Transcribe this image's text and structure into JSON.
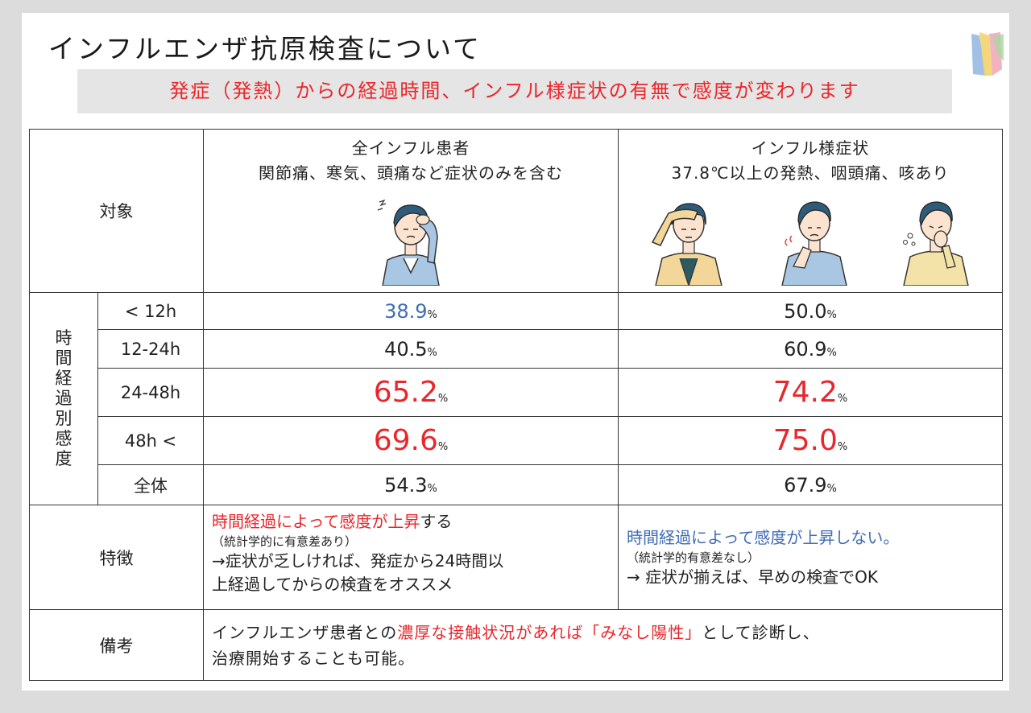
{
  "title": "インフルエンザ抗原検査について",
  "subtitle": "発症（発熱）からの経過時間、インフル様症状の有無で感度が変わります",
  "header": {
    "target_label": "対象",
    "col1_title": "全インフル患者",
    "col1_sub": "関節痛、寒気、頭痛など症状のみを含む",
    "col2_title": "インフル様症状",
    "col2_sub": "37.8℃以上の発熱、咽頭痛、咳あり"
  },
  "vertical_label": [
    "時",
    "間",
    "経",
    "過",
    "別",
    "感",
    "度"
  ],
  "rows": [
    {
      "time": "< 12h",
      "v1": "38.9",
      "v2": "50.0"
    },
    {
      "time": "12-24h",
      "v1": "40.5",
      "v2": "60.9"
    },
    {
      "time": "24-48h",
      "v1": "65.2",
      "v2": "74.2"
    },
    {
      "time": "48h <",
      "v1": "69.6",
      "v2": "75.0"
    },
    {
      "time": "全体",
      "v1": "54.3",
      "v2": "67.9"
    }
  ],
  "pct_unit": "%",
  "features": {
    "label": "特徴",
    "left_red": "時間経過によって感度が上昇",
    "left_tail": "する",
    "left_small": "（統計学的に有意差あり）",
    "left_line3": "→症状が乏しければ、発症から24時間以",
    "left_line4": "上経過してからの検査をオススメ",
    "right_blue": "時間経過によって感度が上昇しない。",
    "right_small": "（統計学的有意差なし）",
    "right_line3": "→ 症状が揃えば、早めの検査でOK"
  },
  "remarks": {
    "label": "備考",
    "pre": "インフルエンザ患者との",
    "red": "濃厚な接触状況があれば「みなし陽性」",
    "post": "として診断し、",
    "line2": "治療開始することも可能。"
  },
  "colors": {
    "accent_red": "#e8262b",
    "accent_blue": "#3f6db4",
    "subtitle_bg": "#e5e5e5"
  },
  "icons": [
    "headache-person-icon",
    "forehead-person-icon",
    "sore-throat-person-icon",
    "coughing-person-icon",
    "logo-icon"
  ]
}
